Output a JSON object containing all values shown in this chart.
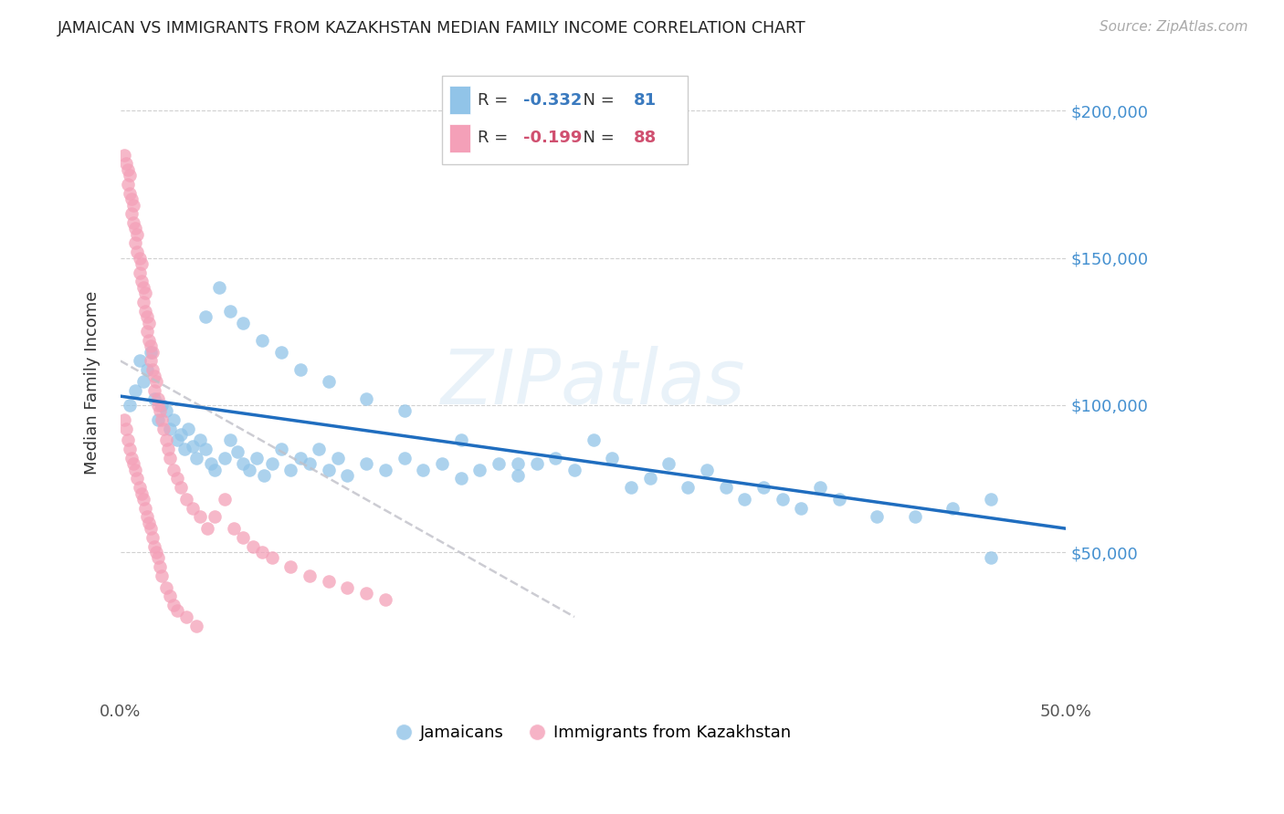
{
  "title": "JAMAICAN VS IMMIGRANTS FROM KAZAKHSTAN MEDIAN FAMILY INCOME CORRELATION CHART",
  "source": "Source: ZipAtlas.com",
  "ylabel": "Median Family Income",
  "ymin": 0,
  "ymax": 215000,
  "xmin": 0,
  "xmax": 0.5,
  "legend_blue_r": "-0.332",
  "legend_blue_n": "81",
  "legend_pink_r": "-0.199",
  "legend_pink_n": "88",
  "blue_color": "#91c4e8",
  "pink_color": "#f4a0b8",
  "blue_line_color": "#1f6dbf",
  "pink_line_color": "#c0c0c8",
  "blue_label": "Jamaicans",
  "pink_label": "Immigrants from Kazakhstan",
  "watermark": "ZIPatlas",
  "background_color": "#ffffff",
  "blue_scatter_x": [
    0.005,
    0.008,
    0.01,
    0.012,
    0.014,
    0.016,
    0.018,
    0.02,
    0.022,
    0.024,
    0.026,
    0.028,
    0.03,
    0.032,
    0.034,
    0.036,
    0.038,
    0.04,
    0.042,
    0.045,
    0.048,
    0.05,
    0.055,
    0.058,
    0.062,
    0.065,
    0.068,
    0.072,
    0.076,
    0.08,
    0.085,
    0.09,
    0.095,
    0.1,
    0.105,
    0.11,
    0.115,
    0.12,
    0.13,
    0.14,
    0.15,
    0.16,
    0.17,
    0.18,
    0.19,
    0.2,
    0.21,
    0.22,
    0.23,
    0.24,
    0.25,
    0.26,
    0.27,
    0.28,
    0.29,
    0.3,
    0.31,
    0.32,
    0.33,
    0.34,
    0.35,
    0.36,
    0.37,
    0.38,
    0.4,
    0.42,
    0.44,
    0.46,
    0.045,
    0.052,
    0.058,
    0.065,
    0.075,
    0.085,
    0.095,
    0.11,
    0.13,
    0.15,
    0.18,
    0.21,
    0.46
  ],
  "blue_scatter_y": [
    100000,
    105000,
    115000,
    108000,
    112000,
    118000,
    102000,
    95000,
    100000,
    98000,
    92000,
    95000,
    88000,
    90000,
    85000,
    92000,
    86000,
    82000,
    88000,
    85000,
    80000,
    78000,
    82000,
    88000,
    84000,
    80000,
    78000,
    82000,
    76000,
    80000,
    85000,
    78000,
    82000,
    80000,
    85000,
    78000,
    82000,
    76000,
    80000,
    78000,
    82000,
    78000,
    80000,
    75000,
    78000,
    80000,
    76000,
    80000,
    82000,
    78000,
    88000,
    82000,
    72000,
    75000,
    80000,
    72000,
    78000,
    72000,
    68000,
    72000,
    68000,
    65000,
    72000,
    68000,
    62000,
    62000,
    65000,
    68000,
    130000,
    140000,
    132000,
    128000,
    122000,
    118000,
    112000,
    108000,
    102000,
    98000,
    88000,
    80000,
    48000
  ],
  "pink_scatter_x": [
    0.002,
    0.003,
    0.004,
    0.004,
    0.005,
    0.005,
    0.006,
    0.006,
    0.007,
    0.007,
    0.008,
    0.008,
    0.009,
    0.009,
    0.01,
    0.01,
    0.011,
    0.011,
    0.012,
    0.012,
    0.013,
    0.013,
    0.014,
    0.014,
    0.015,
    0.015,
    0.016,
    0.016,
    0.017,
    0.017,
    0.018,
    0.018,
    0.019,
    0.02,
    0.02,
    0.021,
    0.022,
    0.023,
    0.024,
    0.025,
    0.026,
    0.028,
    0.03,
    0.032,
    0.035,
    0.038,
    0.042,
    0.046,
    0.05,
    0.055,
    0.06,
    0.065,
    0.07,
    0.075,
    0.08,
    0.09,
    0.1,
    0.11,
    0.12,
    0.13,
    0.14,
    0.002,
    0.003,
    0.004,
    0.005,
    0.006,
    0.007,
    0.008,
    0.009,
    0.01,
    0.011,
    0.012,
    0.013,
    0.014,
    0.015,
    0.016,
    0.017,
    0.018,
    0.019,
    0.02,
    0.021,
    0.022,
    0.024,
    0.026,
    0.028,
    0.03,
    0.035,
    0.04
  ],
  "pink_scatter_y": [
    185000,
    182000,
    180000,
    175000,
    178000,
    172000,
    170000,
    165000,
    168000,
    162000,
    160000,
    155000,
    158000,
    152000,
    150000,
    145000,
    148000,
    142000,
    140000,
    135000,
    138000,
    132000,
    130000,
    125000,
    128000,
    122000,
    120000,
    115000,
    118000,
    112000,
    110000,
    105000,
    108000,
    102000,
    100000,
    98000,
    95000,
    92000,
    88000,
    85000,
    82000,
    78000,
    75000,
    72000,
    68000,
    65000,
    62000,
    58000,
    62000,
    68000,
    58000,
    55000,
    52000,
    50000,
    48000,
    45000,
    42000,
    40000,
    38000,
    36000,
    34000,
    95000,
    92000,
    88000,
    85000,
    82000,
    80000,
    78000,
    75000,
    72000,
    70000,
    68000,
    65000,
    62000,
    60000,
    58000,
    55000,
    52000,
    50000,
    48000,
    45000,
    42000,
    38000,
    35000,
    32000,
    30000,
    28000,
    25000
  ],
  "blue_trend_x": [
    0.0,
    0.5
  ],
  "blue_trend_y": [
    103000,
    58000
  ],
  "pink_trend_x": [
    0.0,
    0.24
  ],
  "pink_trend_y": [
    115000,
    28000
  ]
}
